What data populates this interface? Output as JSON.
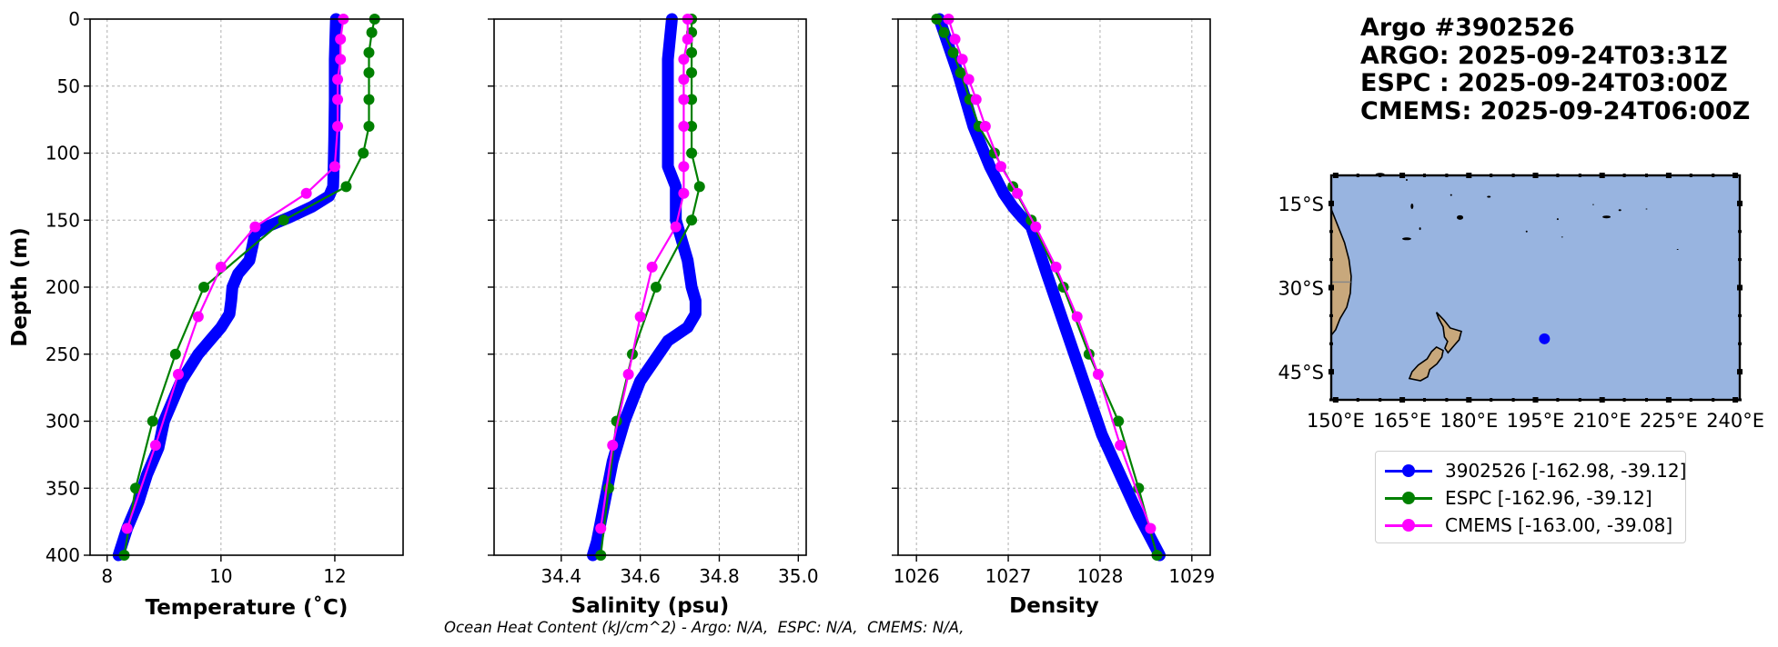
{
  "info": {
    "line1": "Argo #3902526",
    "line2": "ARGO: 2025-09-24T03:31Z",
    "line3": "ESPC : 2025-09-24T03:00Z",
    "line4": "CMEMS: 2025-09-24T06:00Z"
  },
  "caption": "Ocean Heat Content (kJ/cm^2) - Argo: N/A,  ESPC: N/A,  CMEMS: N/A,",
  "colors": {
    "argo": "#0000ff",
    "espc": "#008000",
    "cmems": "#ff00ff",
    "ocean": "#98b4e0",
    "land": "#c8a87c"
  },
  "legend": [
    {
      "label": "3902526 [-162.98, -39.12]",
      "color": "#0000ff"
    },
    {
      "label": "ESPC [-162.96, -39.12]",
      "color": "#008000"
    },
    {
      "label": "CMEMS [-163.00, -39.08]",
      "color": "#ff00ff"
    }
  ],
  "chart_data": [
    {
      "type": "line",
      "title": "",
      "xlabel": "Temperature (˚C)",
      "ylabel": "Depth (m)",
      "xlim": [
        7.7,
        13.2
      ],
      "ylim": [
        400,
        0
      ],
      "xticks": [
        8,
        10,
        12
      ],
      "xtick_labels": [
        "8",
        "10",
        "12"
      ],
      "yticks": [
        0,
        50,
        100,
        150,
        200,
        250,
        300,
        350,
        400
      ],
      "ytick_labels": [
        "0",
        "50",
        "100",
        "150",
        "200",
        "250",
        "300",
        "350",
        "400"
      ],
      "grid": true,
      "series": [
        {
          "name": "3902526",
          "color": "#0000ff",
          "style": "thick",
          "x": [
            12.02,
            12.0,
            12.0,
            11.99,
            11.98,
            11.97,
            11.9,
            11.6,
            11.2,
            10.8,
            10.6,
            10.55,
            10.5,
            10.3,
            10.2,
            10.18,
            10.15,
            10.0,
            9.6,
            9.3,
            9.15,
            9.0,
            8.9,
            8.7,
            8.55,
            8.35,
            8.2
          ],
          "y": [
            0,
            30,
            60,
            90,
            110,
            125,
            132,
            140,
            148,
            155,
            160,
            170,
            180,
            190,
            200,
            210,
            220,
            230,
            250,
            270,
            285,
            300,
            320,
            340,
            360,
            380,
            400
          ]
        },
        {
          "name": "ESPC",
          "color": "#008000",
          "x": [
            12.7,
            12.65,
            12.6,
            12.6,
            12.6,
            12.6,
            12.5,
            12.2,
            11.1,
            9.7,
            9.2,
            8.8,
            8.5,
            8.3
          ],
          "y": [
            0,
            10,
            25,
            40,
            60,
            80,
            100,
            125,
            150,
            200,
            250,
            300,
            350,
            400
          ]
        },
        {
          "name": "CMEMS",
          "color": "#ff00ff",
          "x": [
            12.15,
            12.1,
            12.1,
            12.05,
            12.05,
            12.05,
            12.0,
            11.5,
            10.6,
            10.0,
            9.6,
            9.25,
            8.85,
            8.35
          ],
          "y": [
            0,
            15,
            30,
            45,
            60,
            80,
            110,
            130,
            155,
            185,
            222,
            265,
            318,
            380
          ]
        }
      ]
    },
    {
      "type": "line",
      "title": "",
      "xlabel": "Salinity (psu)",
      "ylabel": "",
      "xlim": [
        34.23,
        35.02
      ],
      "ylim": [
        400,
        0
      ],
      "xticks": [
        34.4,
        34.6,
        34.8,
        35.0
      ],
      "xtick_labels": [
        "34.4",
        "34.6",
        "34.8",
        "35.0"
      ],
      "yticks": [
        0,
        50,
        100,
        150,
        200,
        250,
        300,
        350,
        400
      ],
      "grid": true,
      "series": [
        {
          "name": "3902526",
          "color": "#0000ff",
          "style": "thick",
          "x": [
            34.68,
            34.67,
            34.67,
            34.67,
            34.67,
            34.69,
            34.69,
            34.69,
            34.7,
            34.72,
            34.73,
            34.74,
            34.74,
            34.72,
            34.67,
            34.6,
            34.56,
            34.53,
            34.51,
            34.49,
            34.48
          ],
          "y": [
            0,
            30,
            60,
            90,
            110,
            125,
            140,
            150,
            160,
            180,
            200,
            210,
            220,
            230,
            240,
            270,
            300,
            330,
            360,
            390,
            400
          ]
        },
        {
          "name": "ESPC",
          "color": "#008000",
          "x": [
            34.73,
            34.73,
            34.73,
            34.73,
            34.73,
            34.73,
            34.73,
            34.75,
            34.73,
            34.64,
            34.58,
            34.54,
            34.52,
            34.5
          ],
          "y": [
            0,
            10,
            25,
            40,
            60,
            80,
            100,
            125,
            150,
            200,
            250,
            300,
            350,
            400
          ]
        },
        {
          "name": "CMEMS",
          "color": "#ff00ff",
          "x": [
            34.72,
            34.72,
            34.71,
            34.71,
            34.71,
            34.71,
            34.71,
            34.71,
            34.69,
            34.63,
            34.6,
            34.57,
            34.53,
            34.5
          ],
          "y": [
            0,
            15,
            30,
            45,
            60,
            80,
            110,
            130,
            155,
            185,
            222,
            265,
            318,
            380
          ]
        }
      ]
    },
    {
      "type": "line",
      "title": "",
      "xlabel": "Density",
      "ylabel": "",
      "xlim": [
        1025.8,
        1029.2
      ],
      "ylim": [
        400,
        0
      ],
      "xticks": [
        1026,
        1027,
        1028,
        1029
      ],
      "xtick_labels": [
        "1026",
        "1027",
        "1028",
        "1029"
      ],
      "yticks": [
        0,
        50,
        100,
        150,
        200,
        250,
        300,
        350,
        400
      ],
      "grid": true,
      "series": [
        {
          "name": "3902526",
          "color": "#0000ff",
          "style": "thick",
          "x": [
            1026.25,
            1026.45,
            1026.62,
            1026.8,
            1026.95,
            1027.05,
            1027.15,
            1027.25,
            1027.42,
            1027.62,
            1027.82,
            1028.02,
            1028.22,
            1028.42,
            1028.65
          ],
          "y": [
            0,
            40,
            80,
            110,
            130,
            140,
            148,
            155,
            190,
            230,
            270,
            310,
            340,
            370,
            400
          ]
        },
        {
          "name": "ESPC",
          "color": "#008000",
          "x": [
            1026.22,
            1026.3,
            1026.4,
            1026.48,
            1026.58,
            1026.68,
            1026.85,
            1027.05,
            1027.25,
            1027.6,
            1027.88,
            1028.2,
            1028.42,
            1028.62
          ],
          "y": [
            0,
            10,
            25,
            40,
            60,
            80,
            100,
            125,
            150,
            200,
            250,
            300,
            350,
            400
          ]
        },
        {
          "name": "CMEMS",
          "color": "#ff00ff",
          "x": [
            1026.35,
            1026.42,
            1026.5,
            1026.57,
            1026.65,
            1026.75,
            1026.92,
            1027.1,
            1027.3,
            1027.52,
            1027.75,
            1027.98,
            1028.22,
            1028.55
          ],
          "y": [
            0,
            15,
            30,
            45,
            60,
            80,
            110,
            130,
            155,
            185,
            222,
            265,
            318,
            380
          ]
        }
      ]
    }
  ],
  "map": {
    "lon_labels": [
      "150°E",
      "165°E",
      "180°E",
      "195°E",
      "210°E",
      "225°E",
      "240°E"
    ],
    "lon_values": [
      150,
      165,
      180,
      195,
      210,
      225,
      240
    ],
    "lat_labels": [
      "15°S",
      "30°S",
      "45°S"
    ],
    "lat_values": [
      -15,
      -30,
      -45
    ],
    "extent": {
      "lon_min": 149,
      "lon_max": 241,
      "lat_min": -50,
      "lat_max": -10
    },
    "marker": {
      "lon": 197.02,
      "lat": -39.12
    }
  }
}
